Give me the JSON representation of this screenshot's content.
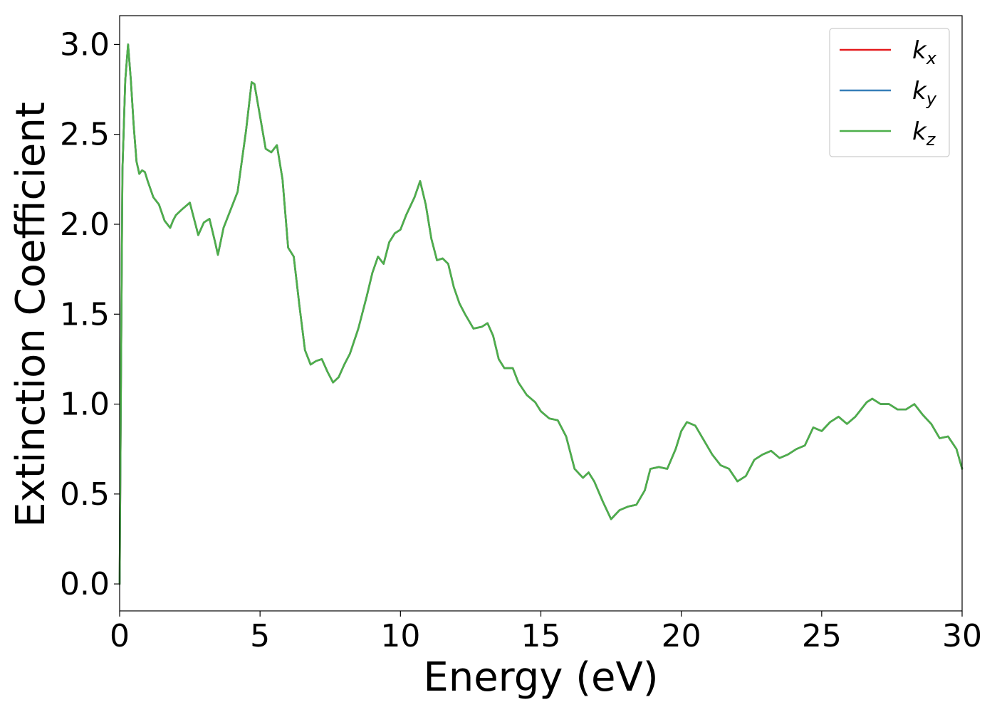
{
  "chart_data": {
    "type": "line",
    "title": "",
    "xlabel": "Energy (eV)",
    "ylabel": "Extinction Coefficient",
    "xlim": [
      0,
      30
    ],
    "ylim": [
      -0.15,
      3.16
    ],
    "xticks": [
      0,
      5,
      10,
      15,
      20,
      25,
      30
    ],
    "xtick_labels": [
      "0",
      "5",
      "10",
      "15",
      "20",
      "25",
      "30"
    ],
    "yticks": [
      0.0,
      0.5,
      1.0,
      1.5,
      2.0,
      2.5,
      3.0
    ],
    "ytick_labels": [
      "0.0",
      "0.5",
      "1.0",
      "1.5",
      "2.0",
      "2.5",
      "3.0"
    ],
    "grid": false,
    "legend_position": "top-right",
    "series": [
      {
        "name": "k_x",
        "label_base": "k",
        "label_sub": "x",
        "color": "#e41a1c",
        "x": [
          0.0,
          0.05,
          0.1,
          0.2,
          0.3,
          0.4,
          0.5,
          0.6,
          0.7,
          0.8,
          0.9,
          1.0,
          1.2,
          1.4,
          1.6,
          1.8,
          1.9,
          2.0,
          2.2,
          2.5,
          2.7,
          2.8,
          3.0,
          3.2,
          3.4,
          3.5,
          3.7,
          4.0,
          4.2,
          4.5,
          4.7,
          4.8,
          5.0,
          5.2,
          5.4,
          5.6,
          5.8,
          6.0,
          6.2,
          6.4,
          6.6,
          6.8,
          7.0,
          7.2,
          7.4,
          7.6,
          7.8,
          8.0,
          8.2,
          8.5,
          8.8,
          9.0,
          9.2,
          9.4,
          9.6,
          9.8,
          10.0,
          10.2,
          10.5,
          10.7,
          10.9,
          11.1,
          11.3,
          11.5,
          11.7,
          11.9,
          12.1,
          12.3,
          12.6,
          12.9,
          13.1,
          13.3,
          13.5,
          13.7,
          14.0,
          14.2,
          14.5,
          14.8,
          15.0,
          15.3,
          15.6,
          15.9,
          16.2,
          16.5,
          16.7,
          16.9,
          17.2,
          17.5,
          17.8,
          18.1,
          18.4,
          18.7,
          18.9,
          19.2,
          19.5,
          19.8,
          20.0,
          20.2,
          20.5,
          20.8,
          21.1,
          21.4,
          21.7,
          22.0,
          22.3,
          22.6,
          22.9,
          23.2,
          23.5,
          23.8,
          24.1,
          24.4,
          24.7,
          25.0,
          25.3,
          25.6,
          25.9,
          26.2,
          26.6,
          26.8,
          27.1,
          27.4,
          27.7,
          28.0,
          28.3,
          28.6,
          28.9,
          29.2,
          29.5,
          29.8,
          30.0
        ],
        "y": [
          0.0,
          1.2,
          2.3,
          2.8,
          3.0,
          2.8,
          2.55,
          2.35,
          2.28,
          2.3,
          2.29,
          2.24,
          2.15,
          2.11,
          2.02,
          1.98,
          2.02,
          2.05,
          2.08,
          2.12,
          2.0,
          1.94,
          2.01,
          2.03,
          1.9,
          1.83,
          1.98,
          2.1,
          2.18,
          2.52,
          2.79,
          2.78,
          2.6,
          2.42,
          2.4,
          2.44,
          2.25,
          1.87,
          1.82,
          1.55,
          1.3,
          1.22,
          1.24,
          1.25,
          1.18,
          1.12,
          1.15,
          1.22,
          1.28,
          1.42,
          1.6,
          1.73,
          1.82,
          1.78,
          1.9,
          1.95,
          1.97,
          2.05,
          2.15,
          2.24,
          2.11,
          1.92,
          1.8,
          1.81,
          1.78,
          1.65,
          1.56,
          1.5,
          1.42,
          1.43,
          1.45,
          1.38,
          1.25,
          1.2,
          1.2,
          1.12,
          1.05,
          1.01,
          0.96,
          0.92,
          0.91,
          0.82,
          0.64,
          0.59,
          0.62,
          0.57,
          0.46,
          0.36,
          0.41,
          0.43,
          0.44,
          0.52,
          0.64,
          0.65,
          0.64,
          0.75,
          0.85,
          0.9,
          0.88,
          0.8,
          0.72,
          0.66,
          0.64,
          0.57,
          0.6,
          0.69,
          0.72,
          0.74,
          0.7,
          0.72,
          0.75,
          0.77,
          0.87,
          0.85,
          0.9,
          0.93,
          0.89,
          0.93,
          1.01,
          1.03,
          1.0,
          1.0,
          0.97,
          0.97,
          1.0,
          0.94,
          0.89,
          0.81,
          0.82,
          0.75,
          0.64
        ]
      },
      {
        "name": "k_y",
        "label_base": "k",
        "label_sub": "y",
        "color": "#377eb8",
        "x": [
          0.0,
          0.05,
          0.1,
          0.2,
          0.3,
          0.4,
          0.5,
          0.6,
          0.7,
          0.8,
          0.9,
          1.0,
          1.2,
          1.4,
          1.6,
          1.8,
          1.9,
          2.0,
          2.2,
          2.5,
          2.7,
          2.8,
          3.0,
          3.2,
          3.4,
          3.5,
          3.7,
          4.0,
          4.2,
          4.5,
          4.7,
          4.8,
          5.0,
          5.2,
          5.4,
          5.6,
          5.8,
          6.0,
          6.2,
          6.4,
          6.6,
          6.8,
          7.0,
          7.2,
          7.4,
          7.6,
          7.8,
          8.0,
          8.2,
          8.5,
          8.8,
          9.0,
          9.2,
          9.4,
          9.6,
          9.8,
          10.0,
          10.2,
          10.5,
          10.7,
          10.9,
          11.1,
          11.3,
          11.5,
          11.7,
          11.9,
          12.1,
          12.3,
          12.6,
          12.9,
          13.1,
          13.3,
          13.5,
          13.7,
          14.0,
          14.2,
          14.5,
          14.8,
          15.0,
          15.3,
          15.6,
          15.9,
          16.2,
          16.5,
          16.7,
          16.9,
          17.2,
          17.5,
          17.8,
          18.1,
          18.4,
          18.7,
          18.9,
          19.2,
          19.5,
          19.8,
          20.0,
          20.2,
          20.5,
          20.8,
          21.1,
          21.4,
          21.7,
          22.0,
          22.3,
          22.6,
          22.9,
          23.2,
          23.5,
          23.8,
          24.1,
          24.4,
          24.7,
          25.0,
          25.3,
          25.6,
          25.9,
          26.2,
          26.6,
          26.8,
          27.1,
          27.4,
          27.7,
          28.0,
          28.3,
          28.6,
          28.9,
          29.2,
          29.5,
          29.8,
          30.0
        ],
        "y": [
          0.0,
          1.2,
          2.3,
          2.8,
          3.0,
          2.8,
          2.55,
          2.35,
          2.28,
          2.3,
          2.29,
          2.24,
          2.15,
          2.11,
          2.02,
          1.98,
          2.02,
          2.05,
          2.08,
          2.12,
          2.0,
          1.94,
          2.01,
          2.03,
          1.9,
          1.83,
          1.98,
          2.1,
          2.18,
          2.52,
          2.79,
          2.78,
          2.6,
          2.42,
          2.4,
          2.44,
          2.25,
          1.87,
          1.82,
          1.55,
          1.3,
          1.22,
          1.24,
          1.25,
          1.18,
          1.12,
          1.15,
          1.22,
          1.28,
          1.42,
          1.6,
          1.73,
          1.82,
          1.78,
          1.9,
          1.95,
          1.97,
          2.05,
          2.15,
          2.24,
          2.11,
          1.92,
          1.8,
          1.81,
          1.78,
          1.65,
          1.56,
          1.5,
          1.42,
          1.43,
          1.45,
          1.38,
          1.25,
          1.2,
          1.2,
          1.12,
          1.05,
          1.01,
          0.96,
          0.92,
          0.91,
          0.82,
          0.64,
          0.59,
          0.62,
          0.57,
          0.46,
          0.36,
          0.41,
          0.43,
          0.44,
          0.52,
          0.64,
          0.65,
          0.64,
          0.75,
          0.85,
          0.9,
          0.88,
          0.8,
          0.72,
          0.66,
          0.64,
          0.57,
          0.6,
          0.69,
          0.72,
          0.74,
          0.7,
          0.72,
          0.75,
          0.77,
          0.87,
          0.85,
          0.9,
          0.93,
          0.89,
          0.93,
          1.01,
          1.03,
          1.0,
          1.0,
          0.97,
          0.97,
          1.0,
          0.94,
          0.89,
          0.81,
          0.82,
          0.75,
          0.64
        ]
      },
      {
        "name": "k_z",
        "label_base": "k",
        "label_sub": "z",
        "color": "#4daf4a",
        "x": [
          0.0,
          0.05,
          0.1,
          0.2,
          0.3,
          0.4,
          0.5,
          0.6,
          0.7,
          0.8,
          0.9,
          1.0,
          1.2,
          1.4,
          1.6,
          1.8,
          1.9,
          2.0,
          2.2,
          2.5,
          2.7,
          2.8,
          3.0,
          3.2,
          3.4,
          3.5,
          3.7,
          4.0,
          4.2,
          4.5,
          4.7,
          4.8,
          5.0,
          5.2,
          5.4,
          5.6,
          5.8,
          6.0,
          6.2,
          6.4,
          6.6,
          6.8,
          7.0,
          7.2,
          7.4,
          7.6,
          7.8,
          8.0,
          8.2,
          8.5,
          8.8,
          9.0,
          9.2,
          9.4,
          9.6,
          9.8,
          10.0,
          10.2,
          10.5,
          10.7,
          10.9,
          11.1,
          11.3,
          11.5,
          11.7,
          11.9,
          12.1,
          12.3,
          12.6,
          12.9,
          13.1,
          13.3,
          13.5,
          13.7,
          14.0,
          14.2,
          14.5,
          14.8,
          15.0,
          15.3,
          15.6,
          15.9,
          16.2,
          16.5,
          16.7,
          16.9,
          17.2,
          17.5,
          17.8,
          18.1,
          18.4,
          18.7,
          18.9,
          19.2,
          19.5,
          19.8,
          20.0,
          20.2,
          20.5,
          20.8,
          21.1,
          21.4,
          21.7,
          22.0,
          22.3,
          22.6,
          22.9,
          23.2,
          23.5,
          23.8,
          24.1,
          24.4,
          24.7,
          25.0,
          25.3,
          25.6,
          25.9,
          26.2,
          26.6,
          26.8,
          27.1,
          27.4,
          27.7,
          28.0,
          28.3,
          28.6,
          28.9,
          29.2,
          29.5,
          29.8,
          30.0
        ],
        "y": [
          0.0,
          1.2,
          2.3,
          2.8,
          3.0,
          2.8,
          2.55,
          2.35,
          2.28,
          2.3,
          2.29,
          2.24,
          2.15,
          2.11,
          2.02,
          1.98,
          2.02,
          2.05,
          2.08,
          2.12,
          2.0,
          1.94,
          2.01,
          2.03,
          1.9,
          1.83,
          1.98,
          2.1,
          2.18,
          2.52,
          2.79,
          2.78,
          2.6,
          2.42,
          2.4,
          2.44,
          2.25,
          1.87,
          1.82,
          1.55,
          1.3,
          1.22,
          1.24,
          1.25,
          1.18,
          1.12,
          1.15,
          1.22,
          1.28,
          1.42,
          1.6,
          1.73,
          1.82,
          1.78,
          1.9,
          1.95,
          1.97,
          2.05,
          2.15,
          2.24,
          2.11,
          1.92,
          1.8,
          1.81,
          1.78,
          1.65,
          1.56,
          1.5,
          1.42,
          1.43,
          1.45,
          1.38,
          1.25,
          1.2,
          1.2,
          1.12,
          1.05,
          1.01,
          0.96,
          0.92,
          0.91,
          0.82,
          0.64,
          0.59,
          0.62,
          0.57,
          0.46,
          0.36,
          0.41,
          0.43,
          0.44,
          0.52,
          0.64,
          0.65,
          0.64,
          0.75,
          0.85,
          0.9,
          0.88,
          0.8,
          0.72,
          0.66,
          0.64,
          0.57,
          0.6,
          0.69,
          0.72,
          0.74,
          0.7,
          0.72,
          0.75,
          0.77,
          0.87,
          0.85,
          0.9,
          0.93,
          0.89,
          0.93,
          1.01,
          1.03,
          1.0,
          1.0,
          0.97,
          0.97,
          1.0,
          0.94,
          0.89,
          0.81,
          0.82,
          0.75,
          0.64
        ]
      }
    ]
  }
}
